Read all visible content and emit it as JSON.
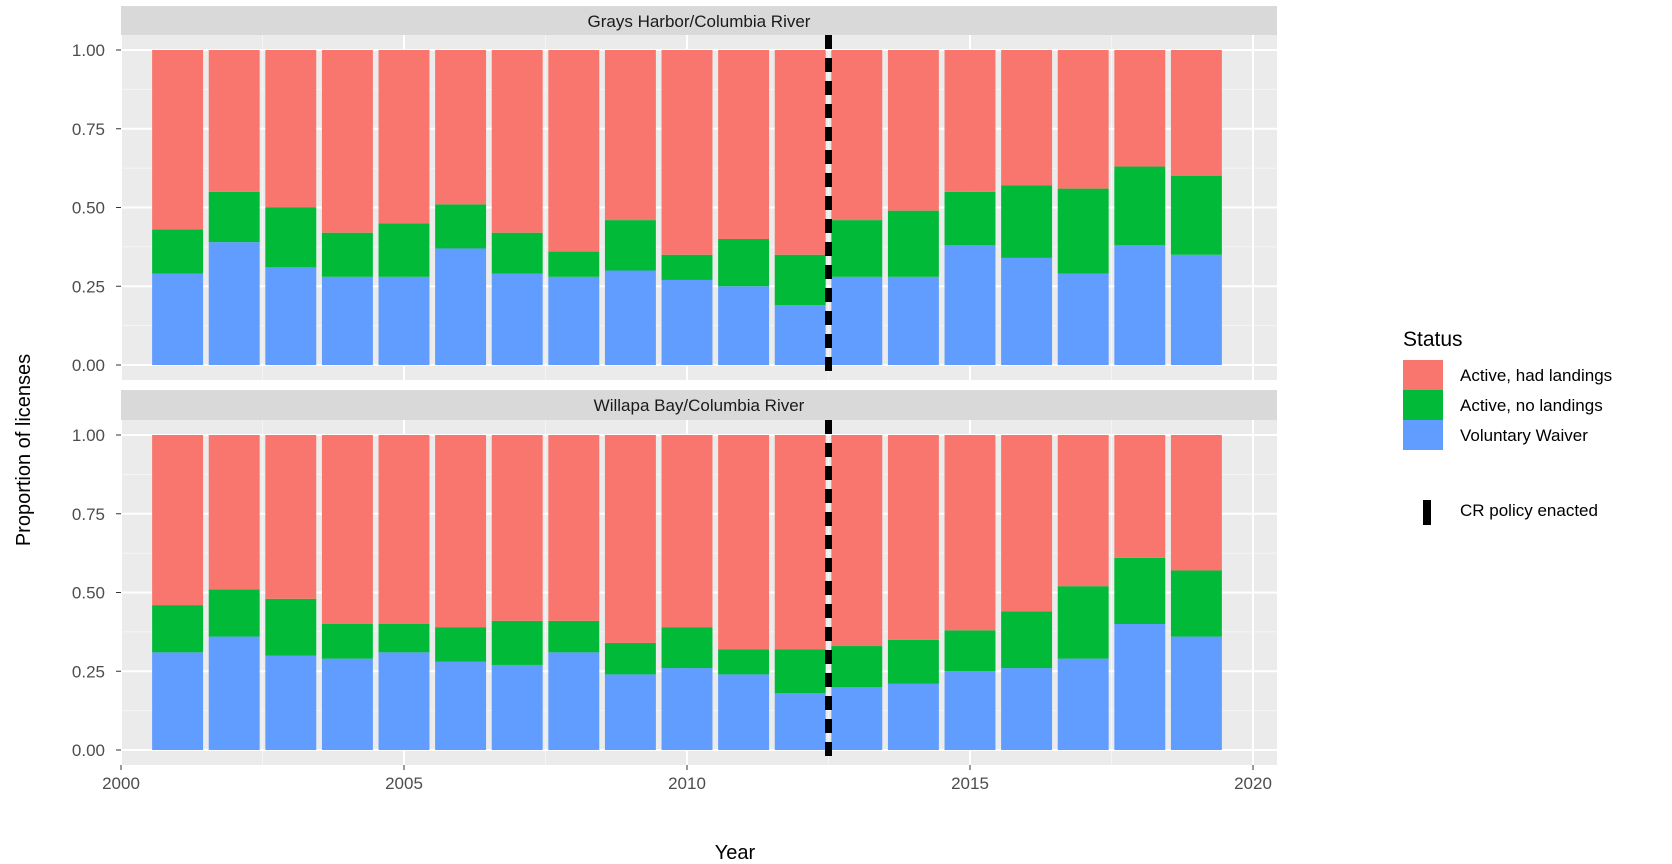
{
  "chart_data": {
    "type": "bar",
    "stacked": true,
    "xlabel": "Year",
    "ylabel": "Proportion of licenses",
    "xlim": [
      2000,
      2020
    ],
    "ylim": [
      0,
      1
    ],
    "x_ticks": [
      "2000",
      "2005",
      "2010",
      "2015",
      "2020"
    ],
    "y_ticks": [
      "0.00",
      "0.25",
      "0.50",
      "0.75",
      "1.00"
    ],
    "grid": true,
    "legend_position": "right",
    "legend_title": "Status",
    "colors": {
      "Active, had landings": "#F8766D",
      "Active, no landings": "#00BA38",
      "Voluntary Waiver": "#619CFF"
    },
    "reference_line": {
      "x": 2012.5,
      "style": "dashed",
      "color": "#000000",
      "label": "CR policy enacted"
    },
    "years": [
      2001,
      2002,
      2003,
      2004,
      2005,
      2006,
      2007,
      2008,
      2009,
      2010,
      2011,
      2012,
      2013,
      2014,
      2015,
      2016,
      2017,
      2018,
      2019
    ],
    "panels": [
      {
        "title": "Grays Harbor/Columbia River",
        "series": [
          {
            "name": "Voluntary Waiver",
            "values": [
              0.29,
              0.39,
              0.31,
              0.28,
              0.28,
              0.37,
              0.29,
              0.28,
              0.3,
              0.27,
              0.25,
              0.19,
              0.28,
              0.28,
              0.38,
              0.34,
              0.29,
              0.38,
              0.35
            ]
          },
          {
            "name": "Active, no landings",
            "values": [
              0.14,
              0.16,
              0.19,
              0.14,
              0.17,
              0.14,
              0.13,
              0.08,
              0.16,
              0.08,
              0.15,
              0.16,
              0.18,
              0.21,
              0.17,
              0.23,
              0.27,
              0.25,
              0.25
            ]
          },
          {
            "name": "Active, had landings",
            "values": [
              0.57,
              0.45,
              0.5,
              0.58,
              0.55,
              0.49,
              0.58,
              0.64,
              0.54,
              0.65,
              0.6,
              0.65,
              0.54,
              0.51,
              0.45,
              0.43,
              0.44,
              0.37,
              0.4
            ]
          }
        ]
      },
      {
        "title": "Willapa Bay/Columbia River",
        "series": [
          {
            "name": "Voluntary Waiver",
            "values": [
              0.31,
              0.36,
              0.3,
              0.29,
              0.31,
              0.28,
              0.27,
              0.31,
              0.24,
              0.26,
              0.24,
              0.18,
              0.2,
              0.21,
              0.25,
              0.26,
              0.29,
              0.4,
              0.36
            ]
          },
          {
            "name": "Active, no landings",
            "values": [
              0.15,
              0.15,
              0.18,
              0.11,
              0.09,
              0.11,
              0.14,
              0.1,
              0.1,
              0.13,
              0.08,
              0.14,
              0.13,
              0.14,
              0.13,
              0.18,
              0.23,
              0.21,
              0.21
            ]
          },
          {
            "name": "Active, had landings",
            "values": [
              0.54,
              0.49,
              0.52,
              0.6,
              0.6,
              0.61,
              0.59,
              0.59,
              0.66,
              0.61,
              0.68,
              0.68,
              0.67,
              0.65,
              0.62,
              0.56,
              0.48,
              0.39,
              0.43
            ]
          }
        ]
      }
    ]
  }
}
